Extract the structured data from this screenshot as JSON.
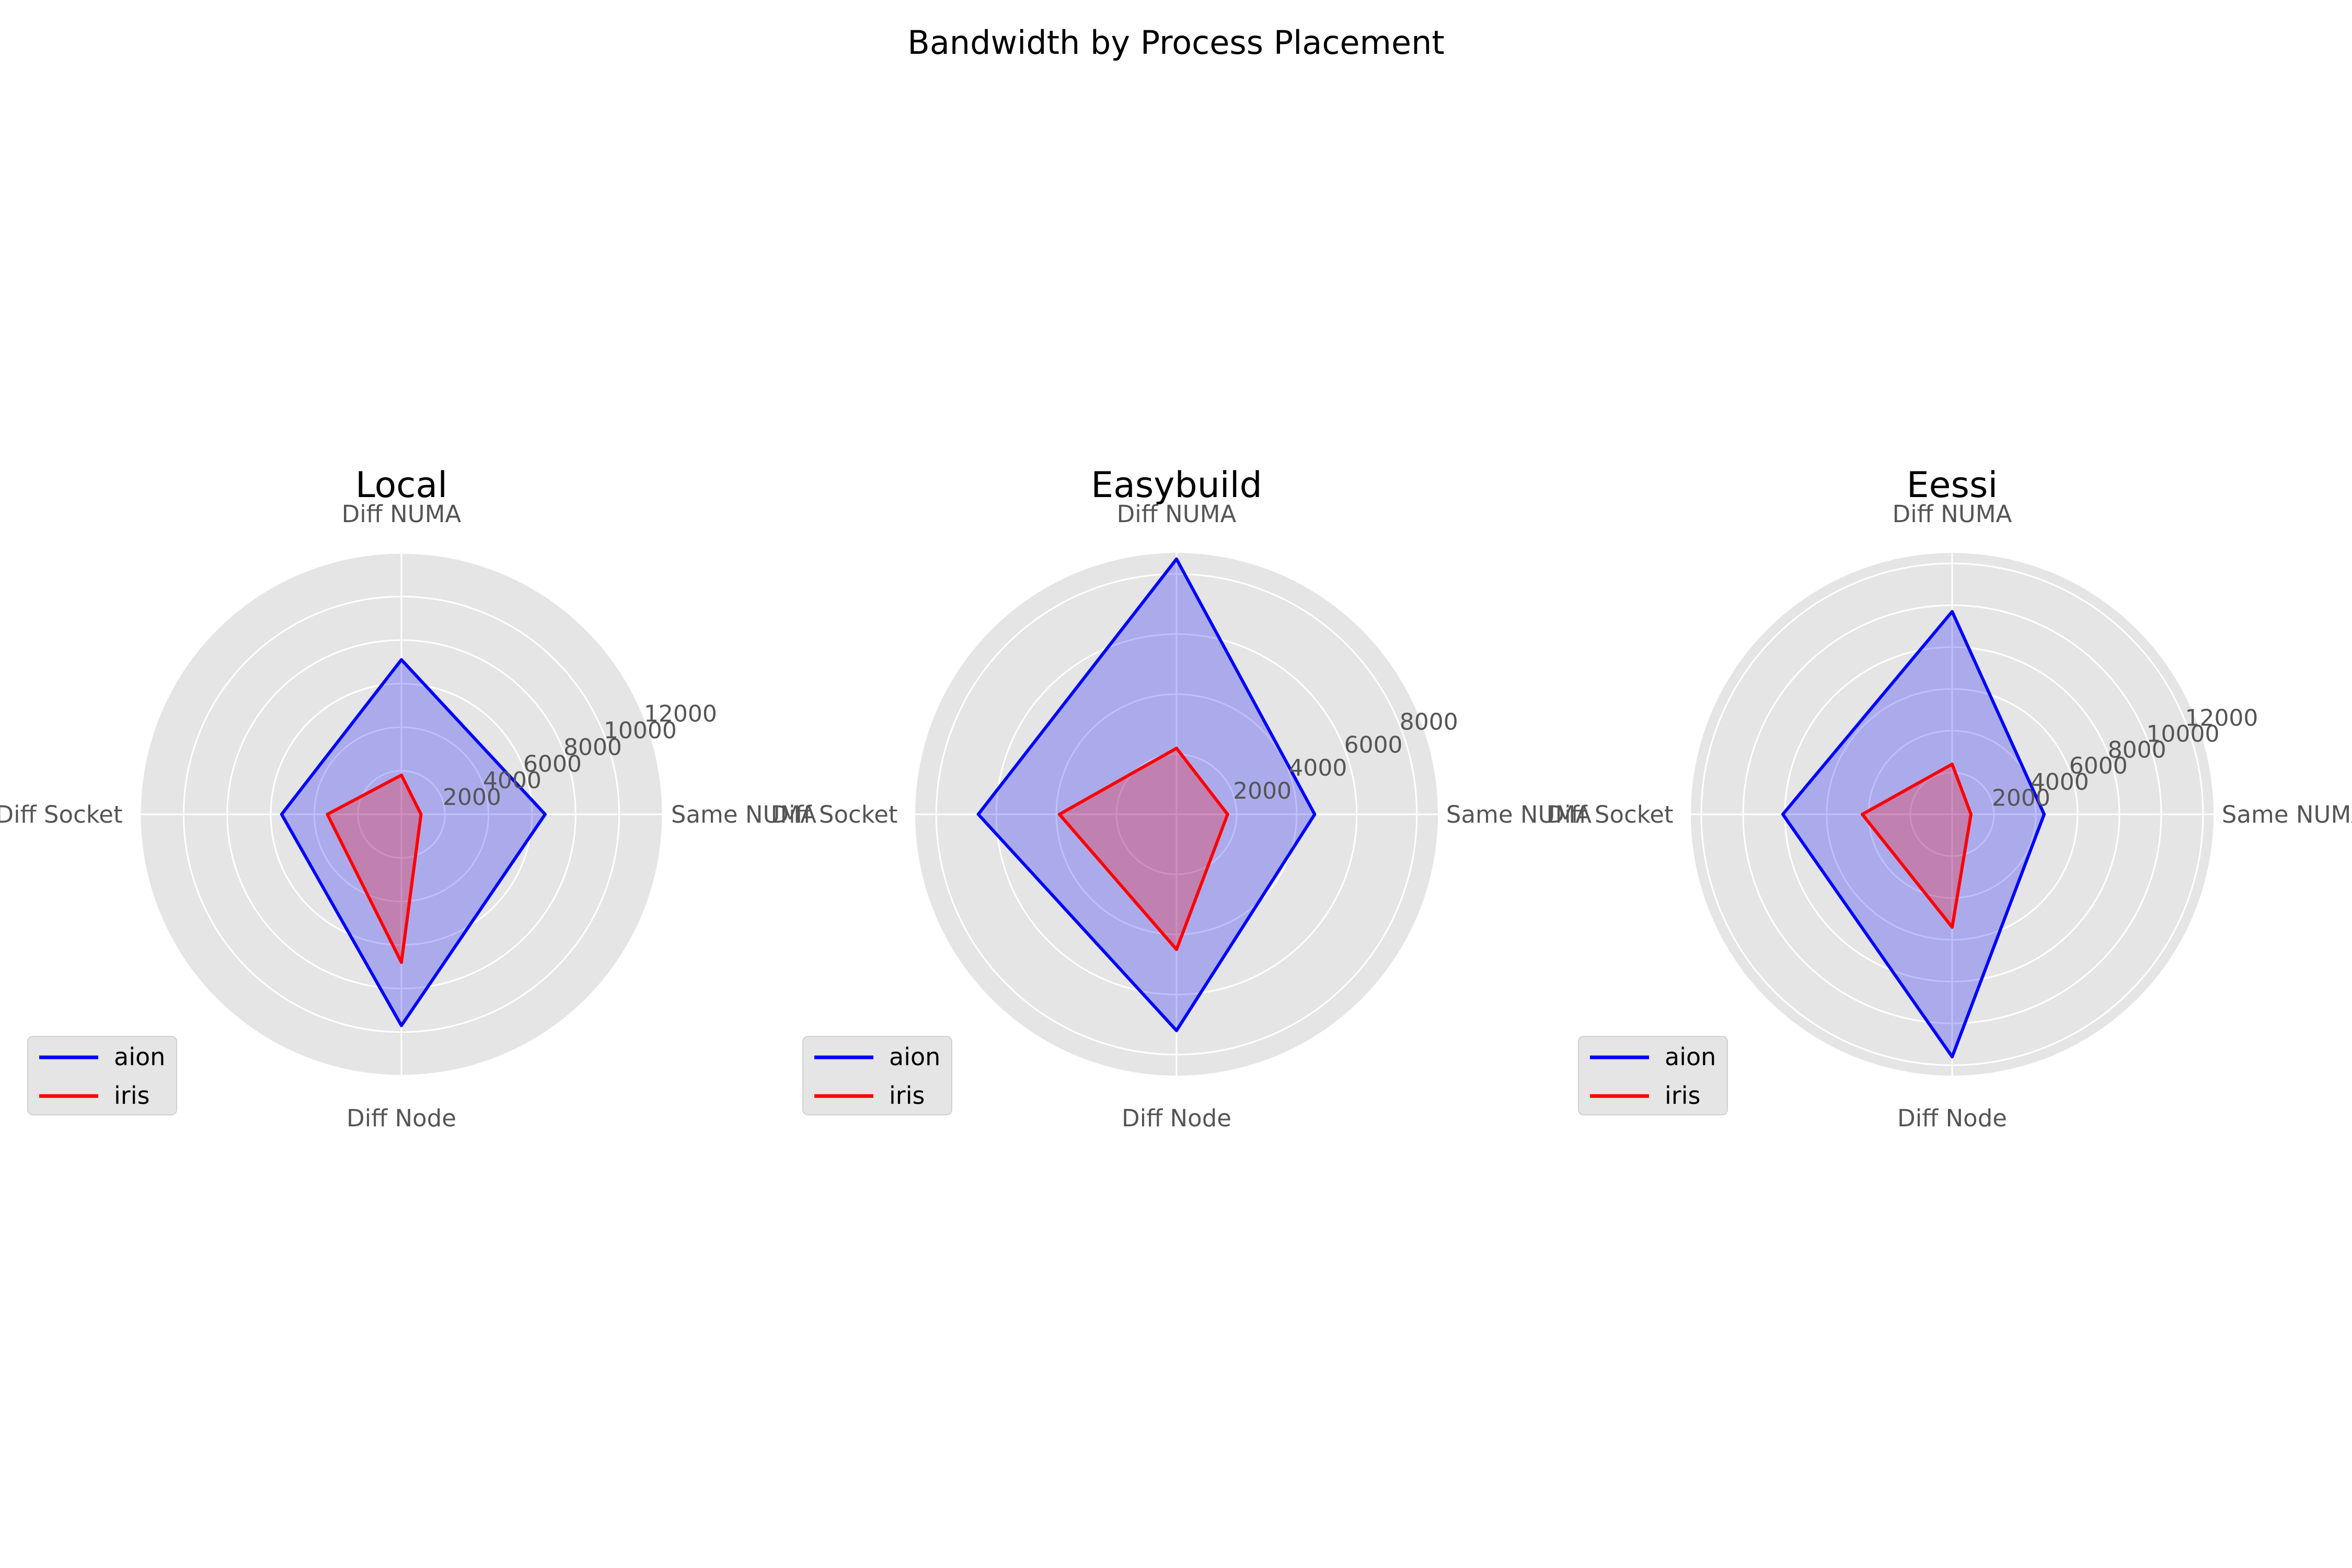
{
  "figure": {
    "title": "Bandwidth by Process Placement"
  },
  "colors": {
    "background": "#ffffff",
    "axes_face": "#e5e5e5",
    "grid": "#ffffff",
    "tick_text": "#555555",
    "title_text": "#000000",
    "legend_face": "#e5e5e5",
    "series": [
      "#0000ff",
      "#ff0000"
    ],
    "fill_alpha": 0.25
  },
  "chart_data": [
    {
      "type": "radar",
      "title": "Local",
      "categories": [
        "Same NUMA",
        "Diff NUMA",
        "Diff Socket",
        "Diff Node"
      ],
      "rmax": 12000,
      "rticks": [
        2000,
        4000,
        6000,
        8000,
        10000,
        12000
      ],
      "legend": "lower-left",
      "series": [
        {
          "name": "aion",
          "values": [
            6600,
            7100,
            5500,
            9700
          ]
        },
        {
          "name": "iris",
          "values": [
            900,
            1800,
            3400,
            6800
          ]
        }
      ]
    },
    {
      "type": "radar",
      "title": "Easybuild",
      "categories": [
        "Same NUMA",
        "Diff NUMA",
        "Diff Socket",
        "Diff Node"
      ],
      "rmax": 8700,
      "rticks": [
        2000,
        4000,
        6000,
        8000
      ],
      "legend": "lower-left",
      "series": [
        {
          "name": "aion",
          "values": [
            4600,
            8500,
            6600,
            7200
          ]
        },
        {
          "name": "iris",
          "values": [
            1700,
            2200,
            3900,
            4500
          ]
        }
      ]
    },
    {
      "type": "radar",
      "title": "Eessi",
      "categories": [
        "Same NUMA",
        "Diff NUMA",
        "Diff Socket",
        "Diff Node"
      ],
      "rmax": 12500,
      "rticks": [
        2000,
        4000,
        6000,
        8000,
        10000,
        12000
      ],
      "legend": "lower-left",
      "series": [
        {
          "name": "aion",
          "values": [
            4400,
            9700,
            8100,
            11600
          ]
        },
        {
          "name": "iris",
          "values": [
            900,
            2400,
            4300,
            5400
          ]
        }
      ]
    }
  ]
}
